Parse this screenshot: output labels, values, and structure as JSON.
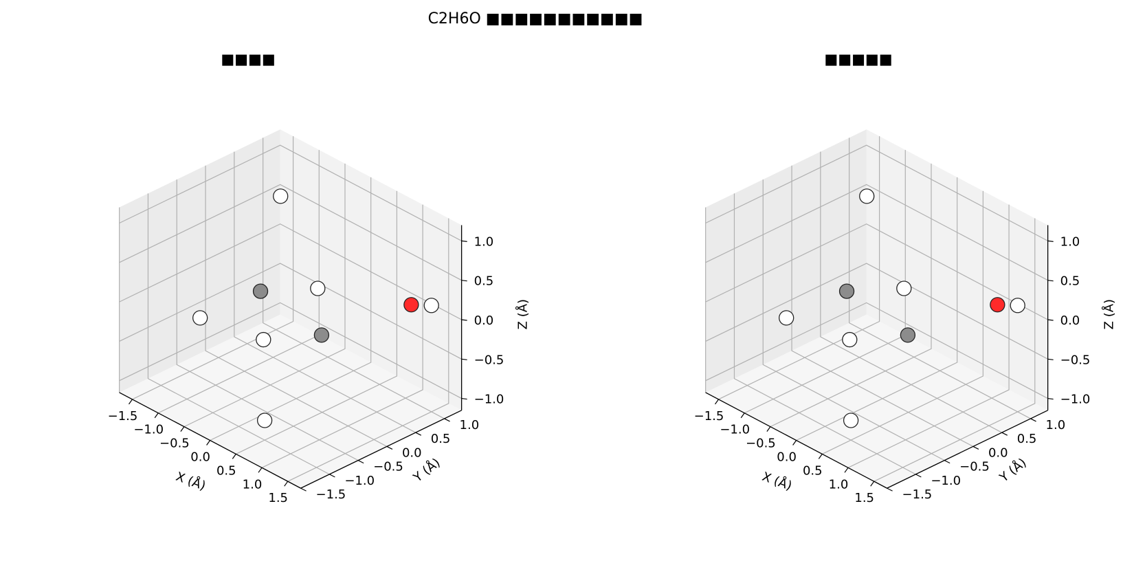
{
  "figure": {
    "title": "C2H6O ■■■■■■■■■■■"
  },
  "chart_data": [
    {
      "type": "scatter3d",
      "title": "■■■■",
      "xlabel": "X (Å)",
      "ylabel": "Y (Å)",
      "zlabel": "Z (Å)",
      "x_ticks": [
        "−1.5",
        "−1.0",
        "−0.5",
        "0.0",
        "0.5",
        "1.0",
        "1.5"
      ],
      "y_ticks": [
        "−1.5",
        "−1.0",
        "−0.5",
        "0.0",
        "0.5",
        "1.0"
      ],
      "z_ticks": [
        "−1.0",
        "−0.5",
        "0.0",
        "0.5",
        "1.0"
      ],
      "xlim": [
        -1.75,
        1.75
      ],
      "ylim": [
        -1.5,
        1.3
      ],
      "zlim": [
        -1.15,
        1.2
      ],
      "grid": true,
      "atoms": [
        {
          "element": "C",
          "color": "#8c8c8c",
          "x": -0.8,
          "y": 0.1,
          "z": -0.1
        },
        {
          "element": "C",
          "color": "#8c8c8c",
          "x": 0.6,
          "y": -0.1,
          "z": -0.1
        },
        {
          "element": "O",
          "color": "#ff2a2a",
          "x": 1.0,
          "y": 1.1,
          "z": 0.0
        },
        {
          "element": "H",
          "color": "#ffffff",
          "x": 1.5,
          "y": 1.0,
          "z": 0.2
        },
        {
          "element": "H",
          "color": "#ffffff",
          "x": -1.3,
          "y": 0.9,
          "z": 0.65
        },
        {
          "element": "H",
          "color": "#ffffff",
          "x": -1.3,
          "y": -0.5,
          "z": -0.4
        },
        {
          "element": "H",
          "color": "#ffffff",
          "x": -0.25,
          "y": 0.6,
          "z": -0.05
        },
        {
          "element": "H",
          "color": "#ffffff",
          "x": -0.3,
          "y": -0.3,
          "z": -0.4
        },
        {
          "element": "H",
          "color": "#ffffff",
          "x": 0.5,
          "y": -1.0,
          "z": -0.9
        }
      ]
    },
    {
      "type": "scatter3d",
      "title": "■■■■■",
      "xlabel": "X (Å)",
      "ylabel": "Y (Å)",
      "zlabel": "Z (Å)",
      "x_ticks": [
        "−1.5",
        "−1.0",
        "−0.5",
        "0.0",
        "0.5",
        "1.0",
        "1.5"
      ],
      "y_ticks": [
        "−1.5",
        "−1.0",
        "−0.5",
        "0.0",
        "0.5",
        "1.0"
      ],
      "z_ticks": [
        "−1.0",
        "−0.5",
        "0.0",
        "0.5",
        "1.0"
      ],
      "xlim": [
        -1.75,
        1.75
      ],
      "ylim": [
        -1.5,
        1.3
      ],
      "zlim": [
        -1.15,
        1.2
      ],
      "grid": true,
      "atoms": [
        {
          "element": "C",
          "color": "#8c8c8c",
          "x": -0.8,
          "y": 0.1,
          "z": -0.1
        },
        {
          "element": "C",
          "color": "#8c8c8c",
          "x": 0.6,
          "y": -0.1,
          "z": -0.1
        },
        {
          "element": "O",
          "color": "#ff2a2a",
          "x": 1.0,
          "y": 1.1,
          "z": 0.0
        },
        {
          "element": "H",
          "color": "#ffffff",
          "x": 1.5,
          "y": 1.0,
          "z": 0.2
        },
        {
          "element": "H",
          "color": "#ffffff",
          "x": -1.3,
          "y": 0.9,
          "z": 0.65
        },
        {
          "element": "H",
          "color": "#ffffff",
          "x": -1.3,
          "y": -0.5,
          "z": -0.4
        },
        {
          "element": "H",
          "color": "#ffffff",
          "x": -0.25,
          "y": 0.6,
          "z": -0.05
        },
        {
          "element": "H",
          "color": "#ffffff",
          "x": -0.3,
          "y": -0.3,
          "z": -0.4
        },
        {
          "element": "H",
          "color": "#ffffff",
          "x": 0.5,
          "y": -1.0,
          "z": -0.9
        }
      ]
    }
  ]
}
